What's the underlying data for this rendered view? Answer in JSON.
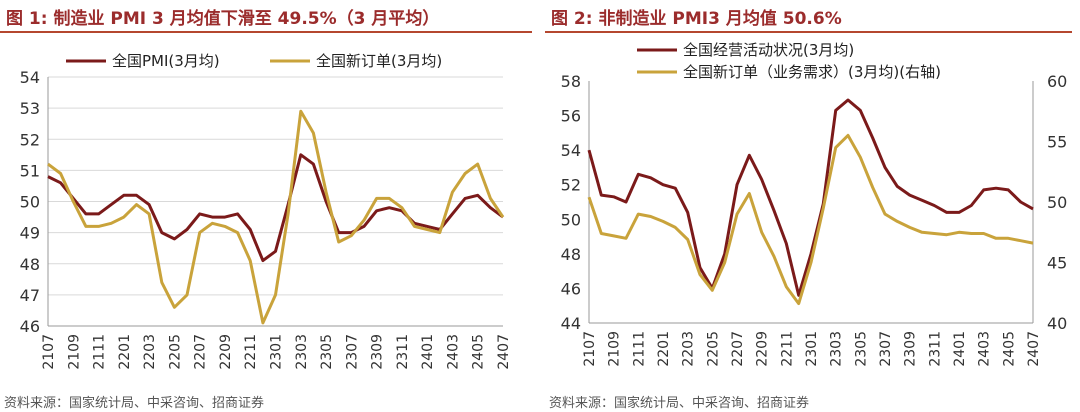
{
  "colors": {
    "dark_red": "#7b1a1a",
    "gold": "#c9a33b",
    "title_red": "#9b2c2c",
    "rule": "#b5472f",
    "grid": "#d9d9d9"
  },
  "left": {
    "title": "图 1:  制造业 PMI 3 月均值下滑至 49.5%（3 月平均）",
    "source": "资料来源：国家统计局、中采咨询、招商证券"
  },
  "right": {
    "title": "图 2:  非制造业 PMI3 月均值 50.6%",
    "source": "资料来源：国家统计局、中采咨询、招商证券"
  },
  "chart_data": [
    {
      "type": "line",
      "title": "图 1:  制造业 PMI 3 月均值下滑至 49.5%（3 月平均）",
      "x": [
        "2107",
        "2108",
        "2109",
        "2110",
        "2111",
        "2112",
        "2201",
        "2202",
        "2203",
        "2204",
        "2205",
        "2206",
        "2207",
        "2208",
        "2209",
        "2210",
        "2211",
        "2212",
        "2301",
        "2302",
        "2303",
        "2304",
        "2305",
        "2306",
        "2307",
        "2308",
        "2309",
        "2310",
        "2311",
        "2312",
        "2401",
        "2402",
        "2403",
        "2404",
        "2405",
        "2406",
        "2407"
      ],
      "tick_labels": [
        "2107",
        "2109",
        "2111",
        "2201",
        "2203",
        "2205",
        "2207",
        "2209",
        "2211",
        "2301",
        "2303",
        "2305",
        "2307",
        "2309",
        "2311",
        "2401",
        "2403",
        "2405",
        "2407"
      ],
      "ylim": [
        46,
        54
      ],
      "yticks": [
        46,
        47,
        48,
        49,
        50,
        51,
        52,
        53,
        54
      ],
      "grid": true,
      "legend_position": "top",
      "series": [
        {
          "name": "全国PMI(3月均)",
          "color": "#7b1a1a",
          "values": [
            50.8,
            50.6,
            50.1,
            49.6,
            49.6,
            49.9,
            50.2,
            50.2,
            49.9,
            49.0,
            48.8,
            49.1,
            49.6,
            49.5,
            49.5,
            49.6,
            49.1,
            48.1,
            48.4,
            49.9,
            51.5,
            51.2,
            50.0,
            49.0,
            49.0,
            49.2,
            49.7,
            49.8,
            49.7,
            49.3,
            49.2,
            49.1,
            49.6,
            50.1,
            50.2,
            49.8,
            49.5
          ]
        },
        {
          "name": "全国新订单(3月均)",
          "color": "#c9a33b",
          "values": [
            51.2,
            50.9,
            50.0,
            49.2,
            49.2,
            49.3,
            49.5,
            49.9,
            49.6,
            47.4,
            46.6,
            47.0,
            49.0,
            49.3,
            49.2,
            49.0,
            48.1,
            46.1,
            47.0,
            49.6,
            52.9,
            52.2,
            50.3,
            48.7,
            48.9,
            49.4,
            50.1,
            50.1,
            49.8,
            49.2,
            49.1,
            49.0,
            50.3,
            50.9,
            51.2,
            50.1,
            49.5
          ]
        }
      ]
    },
    {
      "type": "line",
      "title": "图 2:  非制造业 PMI3 月均值 50.6%",
      "x": [
        "2107",
        "2108",
        "2109",
        "2110",
        "2111",
        "2112",
        "2201",
        "2202",
        "2203",
        "2204",
        "2205",
        "2206",
        "2207",
        "2208",
        "2209",
        "2210",
        "2211",
        "2212",
        "2301",
        "2302",
        "2303",
        "2304",
        "2305",
        "2306",
        "2307",
        "2308",
        "2309",
        "2310",
        "2311",
        "2312",
        "2401",
        "2402",
        "2403",
        "2404",
        "2405",
        "2406",
        "2407"
      ],
      "tick_labels": [
        "2107",
        "2109",
        "2111",
        "2201",
        "2203",
        "2205",
        "2207",
        "2209",
        "2211",
        "2301",
        "2303",
        "2305",
        "2307",
        "2309",
        "2311",
        "2401",
        "2403",
        "2405",
        "2407"
      ],
      "ylim_left": [
        44,
        58
      ],
      "yticks_left": [
        44,
        46,
        48,
        50,
        52,
        54,
        56,
        58
      ],
      "ylim_right": [
        40,
        60
      ],
      "yticks_right": [
        40,
        45,
        50,
        55,
        60
      ],
      "grid": false,
      "legend_position": "top",
      "series": [
        {
          "name": "全国经营活动状况(3月均)",
          "axis": "left",
          "color": "#7b1a1a",
          "values": [
            54.0,
            51.4,
            51.3,
            51.0,
            52.6,
            52.4,
            52.0,
            51.8,
            50.4,
            47.2,
            46.0,
            48.0,
            52.0,
            53.7,
            52.3,
            50.5,
            48.6,
            45.6,
            48.0,
            50.9,
            56.3,
            56.9,
            56.3,
            54.7,
            53.0,
            51.9,
            51.4,
            51.1,
            50.8,
            50.4,
            50.4,
            50.8,
            51.7,
            51.8,
            51.7,
            51.0,
            50.6
          ]
        },
        {
          "name": "全国新订单（业务需求）(3月均)(右轴)",
          "axis": "right",
          "color": "#c9a33b",
          "values": [
            50.4,
            47.4,
            47.2,
            47.0,
            49.0,
            48.8,
            48.4,
            47.9,
            46.9,
            44.0,
            42.7,
            45.0,
            49.0,
            50.7,
            47.5,
            45.5,
            43.0,
            41.6,
            45.0,
            49.5,
            54.5,
            55.5,
            53.7,
            51.2,
            49.0,
            48.4,
            47.9,
            47.5,
            47.4,
            47.3,
            47.5,
            47.4,
            47.4,
            47.0,
            47.0,
            46.8,
            46.6
          ]
        }
      ]
    }
  ]
}
